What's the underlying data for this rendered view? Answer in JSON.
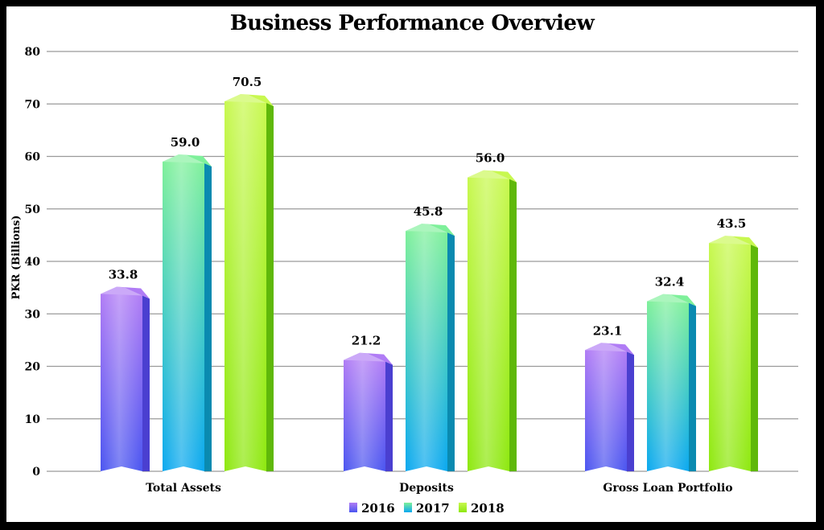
{
  "chart_data": {
    "type": "bar",
    "title": "Business Performance Overview",
    "ylabel": "PKR (Billions)",
    "xlabel": "",
    "ylim": [
      0,
      80
    ],
    "yticks": [
      0,
      10,
      20,
      30,
      40,
      50,
      60,
      70,
      80
    ],
    "grid": true,
    "legend_position": "bottom",
    "categories": [
      "Total Assets",
      "Deposits",
      "Gross Loan Portfolio"
    ],
    "series": [
      {
        "name": "2016",
        "values": [
          33.8,
          21.2,
          23.1
        ],
        "labels": [
          "33.8",
          "21.2",
          "23.1"
        ],
        "color_top": "#b07cf5",
        "color_bottom": "#4a55f0",
        "color_side": "#4a3fd0"
      },
      {
        "name": "2017",
        "values": [
          59.0,
          45.8,
          32.4
        ],
        "labels": [
          "59.0",
          "45.8",
          "32.4"
        ],
        "color_top": "#7ef09a",
        "color_bottom": "#0aa8f0",
        "color_side": "#0a8ab0"
      },
      {
        "name": "2018",
        "values": [
          70.5,
          56.0,
          43.5
        ],
        "labels": [
          "70.5",
          "56.0",
          "43.5"
        ],
        "color_top": "#c8f850",
        "color_bottom": "#8ee810",
        "color_side": "#5fb80a"
      }
    ]
  }
}
